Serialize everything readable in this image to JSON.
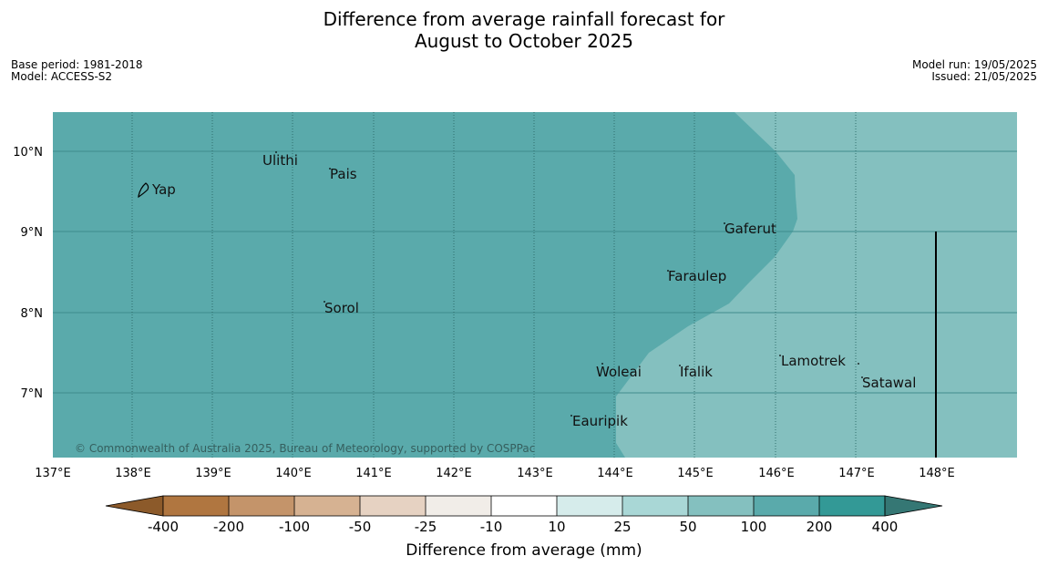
{
  "title": {
    "line1": "Difference from average rainfall forecast for",
    "line2": "August to October 2025"
  },
  "meta_left": {
    "base_period": "Base period: 1981-2018",
    "model": "Model: ACCESS-S2"
  },
  "meta_right": {
    "model_run": "Model run: 19/05/2025",
    "issued": "Issued: 21/05/2025"
  },
  "map": {
    "lon_labels": [
      "137°E",
      "138°E",
      "139°E",
      "140°E",
      "141°E",
      "142°E",
      "143°E",
      "144°E",
      "145°E",
      "146°E",
      "147°E",
      "148°E"
    ],
    "lat_labels": [
      "10°N",
      "9°N",
      "8°N",
      "7°N"
    ],
    "places": [
      {
        "name": "Yap"
      },
      {
        "name": "Ulithi"
      },
      {
        "name": "Pais"
      },
      {
        "name": "Gaferut"
      },
      {
        "name": "Faraulep"
      },
      {
        "name": "Sorol"
      },
      {
        "name": "Lamotrek"
      },
      {
        "name": "Woleai"
      },
      {
        "name": "Ifalik"
      },
      {
        "name": "Satawal"
      },
      {
        "name": "Eauripik"
      }
    ],
    "copyright": "© Commonwealth of Australia 2025, Bureau of Meteorology, supported by COSPPac",
    "colors": {
      "category_100_200": "#5aaaab",
      "category_50_100": "#84c0bf"
    }
  },
  "colorbar": {
    "title": "Difference from average (mm)",
    "tick_labels": [
      "-400",
      "-200",
      "-100",
      "-50",
      "-25",
      "-10",
      "10",
      "25",
      "50",
      "100",
      "200",
      "400"
    ],
    "colors": [
      "#8c5a2a",
      "#b07640",
      "#c4946a",
      "#d6b292",
      "#e6d2c2",
      "#f1ede8",
      "#ffffff",
      "#d6eceb",
      "#a9d7d6",
      "#84c0bf",
      "#5aaaab",
      "#339996",
      "#357774"
    ]
  }
}
